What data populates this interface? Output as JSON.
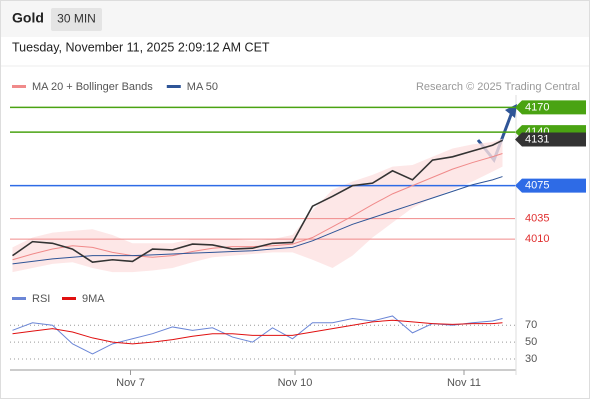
{
  "header": {
    "title": "Gold",
    "interval": "30 MIN",
    "date": "Tuesday, November 11, 2025 2:09:12 AM CET"
  },
  "chart_data": {
    "type": "line",
    "legend": [
      {
        "name": "MA 20 + Bollinger Bands",
        "color": "#f08a8a"
      },
      {
        "name": "MA 50",
        "color": "#2f5597"
      }
    ],
    "source": "Research © 2025 Trading Central",
    "x": [
      0,
      4,
      8,
      12,
      16,
      20,
      24,
      28,
      32,
      36,
      40,
      44,
      48,
      52,
      56,
      60,
      64,
      68,
      72,
      76,
      80,
      84,
      88,
      92,
      96,
      98
    ],
    "xlim": [
      -0.5,
      100.5
    ],
    "xticks": [
      {
        "value": 23.6,
        "label": "Nov 7"
      },
      {
        "value": 56.5,
        "label": "Nov 10"
      },
      {
        "value": 90.3,
        "label": "Nov 11"
      }
    ],
    "ylim": [
      3958,
      4185
    ],
    "series": [
      {
        "name": "Price",
        "color": "#333333",
        "values": [
          3990,
          4007,
          4005,
          3998,
          3982,
          3985,
          3983,
          3998,
          3997,
          4004,
          4003,
          3998,
          3999,
          4005,
          4006,
          4050,
          4062,
          4075,
          4078,
          4093,
          4082,
          4106,
          4110,
          4117,
          4124,
          4130
        ]
      },
      {
        "name": "MA 20",
        "color": "#f08a8a",
        "values": [
          3985,
          3992,
          3998,
          4002,
          4000,
          3994,
          3990,
          3988,
          3990,
          3995,
          3999,
          4001,
          4001,
          4002,
          4004,
          4012,
          4025,
          4038,
          4052,
          4065,
          4075,
          4085,
          4095,
          4103,
          4110,
          4114
        ]
      },
      {
        "name": "Upper band",
        "color": "#fde1e1",
        "values": [
          4000,
          4012,
          4018,
          4020,
          4022,
          4015,
          4005,
          4005,
          4005,
          4010,
          4010,
          4010,
          4008,
          4010,
          4015,
          4045,
          4070,
          4080,
          4088,
          4098,
          4100,
          4110,
          4120,
          4125,
          4128,
          4132
        ]
      },
      {
        "name": "Lower band",
        "color": "#fde1e1",
        "values": [
          3970,
          3975,
          3980,
          3982,
          3975,
          3970,
          3970,
          3972,
          3975,
          3982,
          3988,
          3990,
          3992,
          3994,
          3994,
          3985,
          3975,
          3990,
          4012,
          4030,
          4048,
          4060,
          4070,
          4080,
          4092,
          4098
        ]
      },
      {
        "name": "MA 50",
        "color": "#2f5597",
        "values": [
          3980,
          3983,
          3986,
          3988,
          3990,
          3990,
          3990,
          3991,
          3992,
          3993,
          3994,
          3995,
          3996,
          3998,
          4000,
          4008,
          4018,
          4028,
          4036,
          4044,
          4052,
          4060,
          4068,
          4076,
          4082,
          4086
        ]
      }
    ],
    "levels": [
      {
        "value": 4170,
        "color": "#4aa312",
        "tag": true
      },
      {
        "value": 4140,
        "color": "#4aa312",
        "tag": true
      },
      {
        "value": 4131,
        "color": "#333333",
        "tag": true
      },
      {
        "value": 4075,
        "color": "#2e6be6",
        "tag": true
      },
      {
        "value": 4035,
        "color": "#f08a8a",
        "tag": false
      },
      {
        "value": 4010,
        "color": "#f08a8a",
        "tag": false
      }
    ],
    "rsi": {
      "ylim": [
        17,
        94
      ],
      "yticks": [
        30,
        50,
        70
      ],
      "series": [
        {
          "name": "RSI",
          "color": "#6b86d6",
          "values": [
            64,
            73,
            70,
            48,
            36,
            48,
            54,
            60,
            68,
            64,
            67,
            56,
            50,
            67,
            54,
            73,
            73,
            78,
            75,
            81,
            61,
            72,
            70,
            73,
            75,
            78
          ]
        },
        {
          "name": "9MA",
          "color": "#e01010",
          "values": [
            60,
            63,
            66,
            62,
            55,
            50,
            48,
            50,
            53,
            57,
            60,
            60,
            58,
            58,
            58,
            62,
            66,
            70,
            74,
            76,
            74,
            72,
            71,
            72,
            72,
            73
          ]
        }
      ]
    }
  }
}
